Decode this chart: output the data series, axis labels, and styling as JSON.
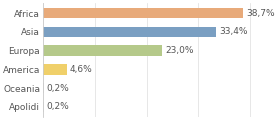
{
  "categories": [
    "Africa",
    "Asia",
    "Europa",
    "America",
    "Oceania",
    "Apolidi"
  ],
  "values": [
    38.7,
    33.4,
    23.0,
    4.6,
    0.2,
    0.2
  ],
  "labels": [
    "38,7%",
    "33,4%",
    "23,0%",
    "4,6%",
    "0,2%",
    "0,2%"
  ],
  "bar_colors": [
    "#e8aa7a",
    "#7a9fc2",
    "#b5c98a",
    "#f0d06a",
    "#cccccc",
    "#cccccc"
  ],
  "background_color": "#ffffff",
  "xlim": [
    0,
    45
  ],
  "bar_height": 0.55,
  "label_fontsize": 6.5,
  "tick_fontsize": 6.5,
  "grid_color": "#dddddd",
  "label_color": "#555555",
  "ytick_color": "#555555"
}
